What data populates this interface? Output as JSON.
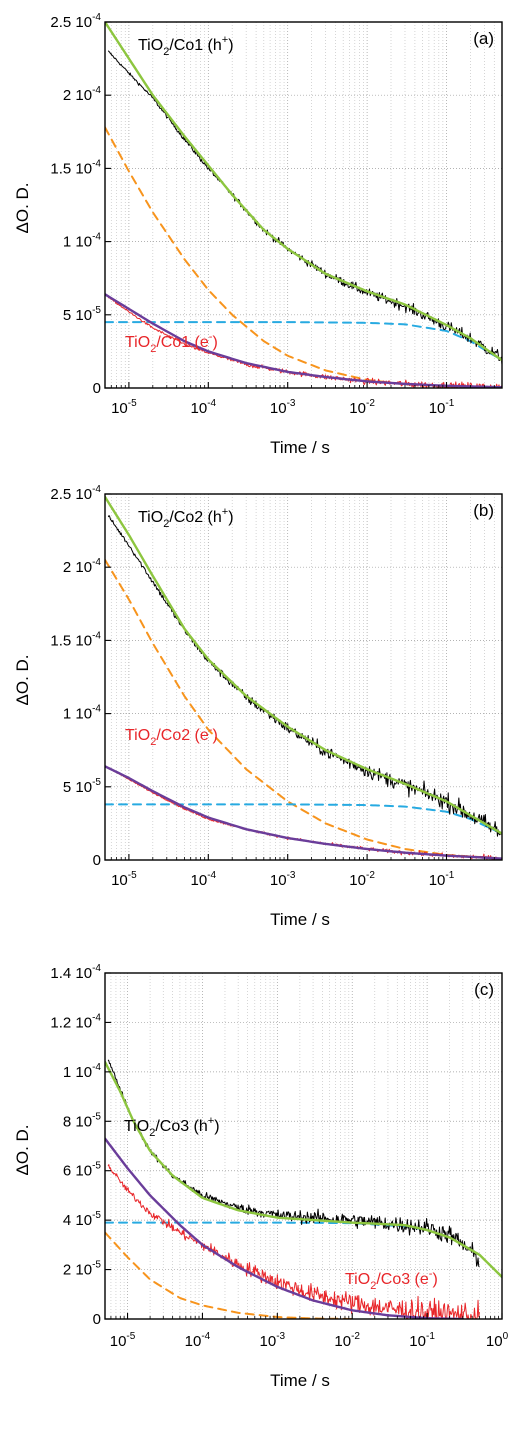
{
  "chart_data": [
    {
      "panel_label": "(a)",
      "type": "line",
      "xscale": "log",
      "xlabel": "Time / s",
      "ylabel": "ΔO. D.",
      "xlim": [
        5e-06,
        0.5
      ],
      "ylim": [
        0,
        0.00025
      ],
      "x_ticks": [
        {
          "value": 1e-05,
          "m": "10",
          "e": "-5"
        },
        {
          "value": 0.0001,
          "m": "10",
          "e": "-4"
        },
        {
          "value": 0.001,
          "m": "10",
          "e": "-3"
        },
        {
          "value": 0.01,
          "m": "10",
          "e": "-2"
        },
        {
          "value": 0.1,
          "m": "10",
          "e": "-1"
        }
      ],
      "y_ticks": [
        {
          "value": 0,
          "m": "0",
          "e": ""
        },
        {
          "value": 5e-05,
          "m": "5 10",
          "e": "-5"
        },
        {
          "value": 0.0001,
          "m": "1 10",
          "e": "-4"
        },
        {
          "value": 0.00015,
          "m": "1.5 10",
          "e": "-4"
        },
        {
          "value": 0.0002,
          "m": "2 10",
          "e": "-4"
        },
        {
          "value": 0.00025,
          "m": "2.5 10",
          "e": "-4"
        }
      ],
      "grid": {
        "x": "major+minor dotted",
        "y": "major dotted"
      },
      "annotations": [
        {
          "text": "TiO2/Co1 (h+)",
          "base": "TiO",
          "sub": "2",
          "mid": "/Co1 (h",
          "sup": "+",
          "tail": ")",
          "color": "#000000",
          "x": 2.2e-05,
          "y": 0.000225
        },
        {
          "text": "TiO2/Co1 (e-)",
          "base": "TiO",
          "sub": "2",
          "mid": "/Co1 (e",
          "sup": "-",
          "tail": ")",
          "color": "#e8262a",
          "x": 1.6e-05,
          "y": 1.75e-05
        }
      ],
      "series": [
        {
          "label": "TiO2/Co1 (h+)",
          "role": "data",
          "color": "#000000",
          "noise": 3e-06,
          "x": [
            5.5e-06,
            1e-05,
            2e-05,
            5e-05,
            0.0001,
            0.0002,
            0.0005,
            0.001,
            0.003,
            0.01,
            0.03,
            0.1,
            0.2,
            0.5
          ],
          "y": [
            0.00023,
            0.000215,
            0.000198,
            0.00017,
            0.00015,
            0.000132,
            0.000108,
            9.5e-05,
            7.8e-05,
            6.5e-05,
            5.6e-05,
            4.2e-05,
            3.4e-05,
            2e-05
          ]
        },
        {
          "label": "TiO2/Co1 (h+) fit",
          "role": "fit",
          "color": "#8dc63f",
          "x": [
            5e-06,
            1e-05,
            2e-05,
            5e-05,
            0.0001,
            0.0002,
            0.0005,
            0.001,
            0.003,
            0.01,
            0.03,
            0.1,
            0.2,
            0.5
          ],
          "y": [
            0.00025,
            0.000225,
            0.0002,
            0.000172,
            0.000152,
            0.000132,
            0.000108,
            9.5e-05,
            7.8e-05,
            6.6e-05,
            5.7e-05,
            4.3e-05,
            3.4e-05,
            1.9e-05
          ]
        },
        {
          "label": "fast component",
          "role": "component",
          "dash": "8,6",
          "color": "#f7941d",
          "x": [
            5e-06,
            1e-05,
            2e-05,
            5e-05,
            0.0001,
            0.0002,
            0.0005,
            0.001,
            0.003,
            0.01,
            0.03,
            0.1,
            0.5
          ],
          "y": [
            0.000178,
            0.000148,
            0.00012,
            8.8e-05,
            6.7e-05,
            5e-05,
            3.2e-05,
            2.2e-05,
            1.2e-05,
            5.5e-06,
            2.5e-06,
            1e-06,
            2e-07
          ]
        },
        {
          "label": "slow component",
          "role": "component",
          "dash": "8,6",
          "color": "#27aae1",
          "x": [
            5e-06,
            0.0001,
            0.001,
            0.003,
            0.01,
            0.03,
            0.1,
            0.2,
            0.5
          ],
          "y": [
            4.5e-05,
            4.5e-05,
            4.5e-05,
            4.48e-05,
            4.45e-05,
            4.35e-05,
            3.9e-05,
            3.2e-05,
            1.9e-05
          ]
        },
        {
          "label": "TiO2/Co1 (e-)",
          "role": "data",
          "color": "#e8262a",
          "noise": 2e-06,
          "x": [
            5.5e-06,
            1e-05,
            2e-05,
            5e-05,
            0.0001,
            0.0003,
            0.001,
            0.003,
            0.01,
            0.03,
            0.1,
            0.5
          ],
          "y": [
            6.2e-05,
            5.2e-05,
            4.1e-05,
            3e-05,
            2.4e-05,
            1.6e-05,
            1.1e-05,
            7.5e-06,
            4.5e-06,
            2.8e-06,
            1.5e-06,
            5e-07
          ]
        },
        {
          "label": "TiO2/Co1 (e-) fit",
          "role": "fit",
          "color": "#6a3d9a",
          "x": [
            5e-06,
            1e-05,
            2e-05,
            5e-05,
            0.0001,
            0.0003,
            0.001,
            0.003,
            0.01,
            0.03,
            0.1,
            0.5
          ],
          "y": [
            6.4e-05,
            5.4e-05,
            4.4e-05,
            3.2e-05,
            2.5e-05,
            1.7e-05,
            1.1e-05,
            7.5e-06,
            4.5e-06,
            2.8e-06,
            1.5e-06,
            5e-07
          ]
        }
      ]
    },
    {
      "panel_label": "(b)",
      "type": "line",
      "xscale": "log",
      "xlabel": "Time / s",
      "ylabel": "ΔO. D.",
      "xlim": [
        5e-06,
        0.5
      ],
      "ylim": [
        0,
        0.00025
      ],
      "x_ticks": [
        {
          "value": 1e-05,
          "m": "10",
          "e": "-5"
        },
        {
          "value": 0.0001,
          "m": "10",
          "e": "-4"
        },
        {
          "value": 0.001,
          "m": "10",
          "e": "-3"
        },
        {
          "value": 0.01,
          "m": "10",
          "e": "-2"
        },
        {
          "value": 0.1,
          "m": "10",
          "e": "-1"
        }
      ],
      "y_ticks": [
        {
          "value": 0,
          "m": "0",
          "e": ""
        },
        {
          "value": 5e-05,
          "m": "5 10",
          "e": "-5"
        },
        {
          "value": 0.0001,
          "m": "1 10",
          "e": "-4"
        },
        {
          "value": 0.00015,
          "m": "1.5 10",
          "e": "-4"
        },
        {
          "value": 0.0002,
          "m": "2 10",
          "e": "-4"
        },
        {
          "value": 0.00025,
          "m": "2.5 10",
          "e": "-4"
        }
      ],
      "grid": {
        "x": "major+minor dotted",
        "y": "major dotted"
      },
      "annotations": [
        {
          "text": "TiO2/Co2 (h+)",
          "base": "TiO",
          "sub": "2",
          "mid": "/Co2 (h",
          "sup": "+",
          "tail": ")",
          "color": "#000000",
          "x": 2.2e-05,
          "y": 0.000225
        },
        {
          "text": "TiO2/Co2 (e-)",
          "base": "TiO",
          "sub": "2",
          "mid": "/Co2 (e",
          "sup": "-",
          "tail": ")",
          "color": "#e8262a",
          "x": 1.6e-05,
          "y": 6.8e-05
        }
      ],
      "series": [
        {
          "label": "TiO2/Co2 (h+)",
          "role": "data",
          "color": "#000000",
          "noise": 4.5e-06,
          "x": [
            5.5e-06,
            1e-05,
            2e-05,
            5e-05,
            0.0001,
            0.0003,
            0.001,
            0.003,
            0.01,
            0.03,
            0.1,
            0.5
          ],
          "y": [
            0.000235,
            0.000215,
            0.00019,
            0.000157,
            0.000136,
            0.000111,
            9e-05,
            7.4e-05,
            6.1e-05,
            5.1e-05,
            4e-05,
            1.8e-05
          ]
        },
        {
          "label": "TiO2/Co2 (h+) fit",
          "role": "fit",
          "color": "#8dc63f",
          "x": [
            5e-06,
            1e-05,
            2e-05,
            5e-05,
            0.0001,
            0.0003,
            0.001,
            0.003,
            0.01,
            0.03,
            0.1,
            0.5
          ],
          "y": [
            0.000248,
            0.000222,
            0.000194,
            0.000158,
            0.000137,
            0.000112,
            9.1e-05,
            7.5e-05,
            6.2e-05,
            5.2e-05,
            4e-05,
            1.8e-05
          ]
        },
        {
          "label": "fast component",
          "role": "component",
          "dash": "8,6",
          "color": "#f7941d",
          "x": [
            5e-06,
            1e-05,
            2e-05,
            5e-05,
            0.0001,
            0.0003,
            0.001,
            0.003,
            0.01,
            0.03,
            0.1,
            0.5
          ],
          "y": [
            0.000205,
            0.000178,
            0.000148,
            0.000112,
            8.9e-05,
            6.2e-05,
            4e-05,
            2.5e-05,
            1.4e-05,
            7.5e-06,
            3.5e-06,
            1e-06
          ]
        },
        {
          "label": "slow component",
          "role": "component",
          "dash": "8,6",
          "color": "#27aae1",
          "x": [
            5e-06,
            0.0001,
            0.001,
            0.003,
            0.01,
            0.03,
            0.1,
            0.2,
            0.5
          ],
          "y": [
            3.8e-05,
            3.8e-05,
            3.8e-05,
            3.78e-05,
            3.75e-05,
            3.65e-05,
            3.3e-05,
            2.8e-05,
            1.8e-05
          ]
        },
        {
          "label": "TiO2/Co2 (e-)",
          "role": "data",
          "color": "#e8262a",
          "noise": 1.2e-06,
          "x": [
            5.5e-06,
            1e-05,
            2e-05,
            5e-05,
            0.0001,
            0.0003,
            0.001,
            0.003,
            0.01,
            0.03,
            0.1,
            0.5
          ],
          "y": [
            6.3e-05,
            5.5e-05,
            4.6e-05,
            3.5e-05,
            2.8e-05,
            2.1e-05,
            1.5e-05,
            1.1e-05,
            7.5e-06,
            5e-06,
            3e-06,
            1e-06
          ]
        },
        {
          "label": "TiO2/Co2 (e-) fit",
          "role": "fit",
          "color": "#6a3d9a",
          "x": [
            5e-06,
            1e-05,
            2e-05,
            5e-05,
            0.0001,
            0.0003,
            0.001,
            0.003,
            0.01,
            0.03,
            0.1,
            0.5
          ],
          "y": [
            6.4e-05,
            5.6e-05,
            4.7e-05,
            3.6e-05,
            2.9e-05,
            2.1e-05,
            1.5e-05,
            1.1e-05,
            7.5e-06,
            5e-06,
            3e-06,
            1e-06
          ]
        }
      ]
    },
    {
      "panel_label": "(c)",
      "type": "line",
      "xscale": "log",
      "xlabel": "Time / s",
      "ylabel": "ΔO. D.",
      "xlim": [
        5e-06,
        1
      ],
      "ylim": [
        0,
        0.00014
      ],
      "x_ticks": [
        {
          "value": 1e-05,
          "m": "10",
          "e": "-5"
        },
        {
          "value": 0.0001,
          "m": "10",
          "e": "-4"
        },
        {
          "value": 0.001,
          "m": "10",
          "e": "-3"
        },
        {
          "value": 0.01,
          "m": "10",
          "e": "-2"
        },
        {
          "value": 0.1,
          "m": "10",
          "e": "-1"
        },
        {
          "value": 1,
          "m": "10",
          "e": "0"
        }
      ],
      "y_ticks": [
        {
          "value": 0,
          "m": "0",
          "e": ""
        },
        {
          "value": 2e-05,
          "m": "2 10",
          "e": "-5"
        },
        {
          "value": 4e-05,
          "m": "4 10",
          "e": "-5"
        },
        {
          "value": 6e-05,
          "m": "6 10",
          "e": "-5"
        },
        {
          "value": 8e-05,
          "m": "8 10",
          "e": "-5"
        },
        {
          "value": 0.0001,
          "m": "1 10",
          "e": "-4"
        },
        {
          "value": 0.00012,
          "m": "1.2 10",
          "e": "-4"
        },
        {
          "value": 0.00014,
          "m": "1.4 10",
          "e": "-4"
        }
      ],
      "grid": {
        "x": "major+minor dotted",
        "y": "major dotted"
      },
      "annotations": [
        {
          "text": "TiO2/Co3 (h+)",
          "base": "TiO",
          "sub": "2",
          "mid": "/Co3 (h",
          "sup": "+",
          "tail": ")",
          "color": "#000000",
          "x": 7e-06,
          "y": 0.000101
        },
        {
          "text": "TiO2/Co3 (e-)",
          "base": "TiO",
          "sub": "2",
          "mid": "/Co3 (e",
          "sup": "-",
          "tail": ")",
          "color": "#e8262a",
          "x": 0.0045,
          "y": 1.8e-05
        }
      ],
      "series": [
        {
          "label": "TiO2/Co3 (h+)",
          "role": "data",
          "color": "#000000",
          "noise": 2.8e-06,
          "x": [
            5.5e-06,
            8e-06,
            1.2e-05,
            2e-05,
            4e-05,
            0.0001,
            0.0003,
            0.001,
            0.01,
            0.1,
            0.2,
            0.3,
            0.5
          ],
          "y": [
            0.000105,
            9.3e-05,
            8e-05,
            6.8e-05,
            5.8e-05,
            5e-05,
            4.5e-05,
            4.2e-05,
            4e-05,
            3.7e-05,
            3.4e-05,
            3e-05,
            2.4e-05
          ]
        },
        {
          "label": "TiO2/Co3 (h+) fit",
          "role": "fit",
          "color": "#8dc63f",
          "x": [
            5e-06,
            8e-06,
            1.2e-05,
            2e-05,
            4e-05,
            0.0001,
            0.0003,
            0.001,
            0.01,
            0.05,
            0.1,
            0.2,
            0.5,
            1
          ],
          "y": [
            0.000104,
            9.2e-05,
            8e-05,
            6.8e-05,
            5.8e-05,
            4.9e-05,
            4.4e-05,
            4.1e-05,
            3.9e-05,
            3.8e-05,
            3.6e-05,
            3.3e-05,
            2.6e-05,
            1.7e-05
          ]
        },
        {
          "label": "fast component",
          "role": "component",
          "dash": "8,6",
          "color": "#f7941d",
          "x": [
            5e-06,
            1e-05,
            2e-05,
            5e-05,
            0.0001,
            0.0003,
            0.001,
            0.003,
            0.01
          ],
          "y": [
            3.5e-05,
            2.5e-05,
            1.6e-05,
            8.5e-06,
            5.5e-06,
            2.5e-06,
            8e-07,
            2e-07,
            0
          ]
        },
        {
          "label": "slow component",
          "role": "component",
          "dash": "8,6",
          "color": "#27aae1",
          "x": [
            5e-06,
            0.0001,
            0.001,
            0.01,
            0.05,
            0.1,
            0.2,
            0.5,
            1
          ],
          "y": [
            3.9e-05,
            3.9e-05,
            3.9e-05,
            3.88e-05,
            3.75e-05,
            3.6e-05,
            3.3e-05,
            2.6e-05,
            1.7e-05
          ]
        },
        {
          "label": "TiO2/Co3 (e-)",
          "role": "data",
          "color": "#e8262a",
          "noise": 4e-06,
          "x": [
            5.5e-06,
            1e-05,
            2e-05,
            5e-05,
            0.0001,
            0.0003,
            0.001,
            0.003,
            0.01,
            0.03,
            0.1,
            0.3,
            0.5
          ],
          "y": [
            6.2e-05,
            5.2e-05,
            4.3e-05,
            3.5e-05,
            3e-05,
            2.2e-05,
            1.5e-05,
            1e-05,
            6.5e-06,
            4.2e-06,
            2.5e-06,
            1.5e-06,
            1e-06
          ]
        },
        {
          "label": "TiO2/Co3 (e-) fit",
          "role": "fit",
          "color": "#6a3d9a",
          "x": [
            5e-06,
            1e-05,
            2e-05,
            5e-05,
            0.0001,
            0.0003,
            0.001,
            0.003,
            0.01,
            0.03,
            0.1,
            0.3
          ],
          "y": [
            7.3e-05,
            6.1e-05,
            5e-05,
            3.8e-05,
            3e-05,
            2.1e-05,
            1.3e-05,
            7.5e-06,
            3.5e-06,
            1.5e-06,
            3e-07,
            0
          ]
        }
      ]
    }
  ]
}
